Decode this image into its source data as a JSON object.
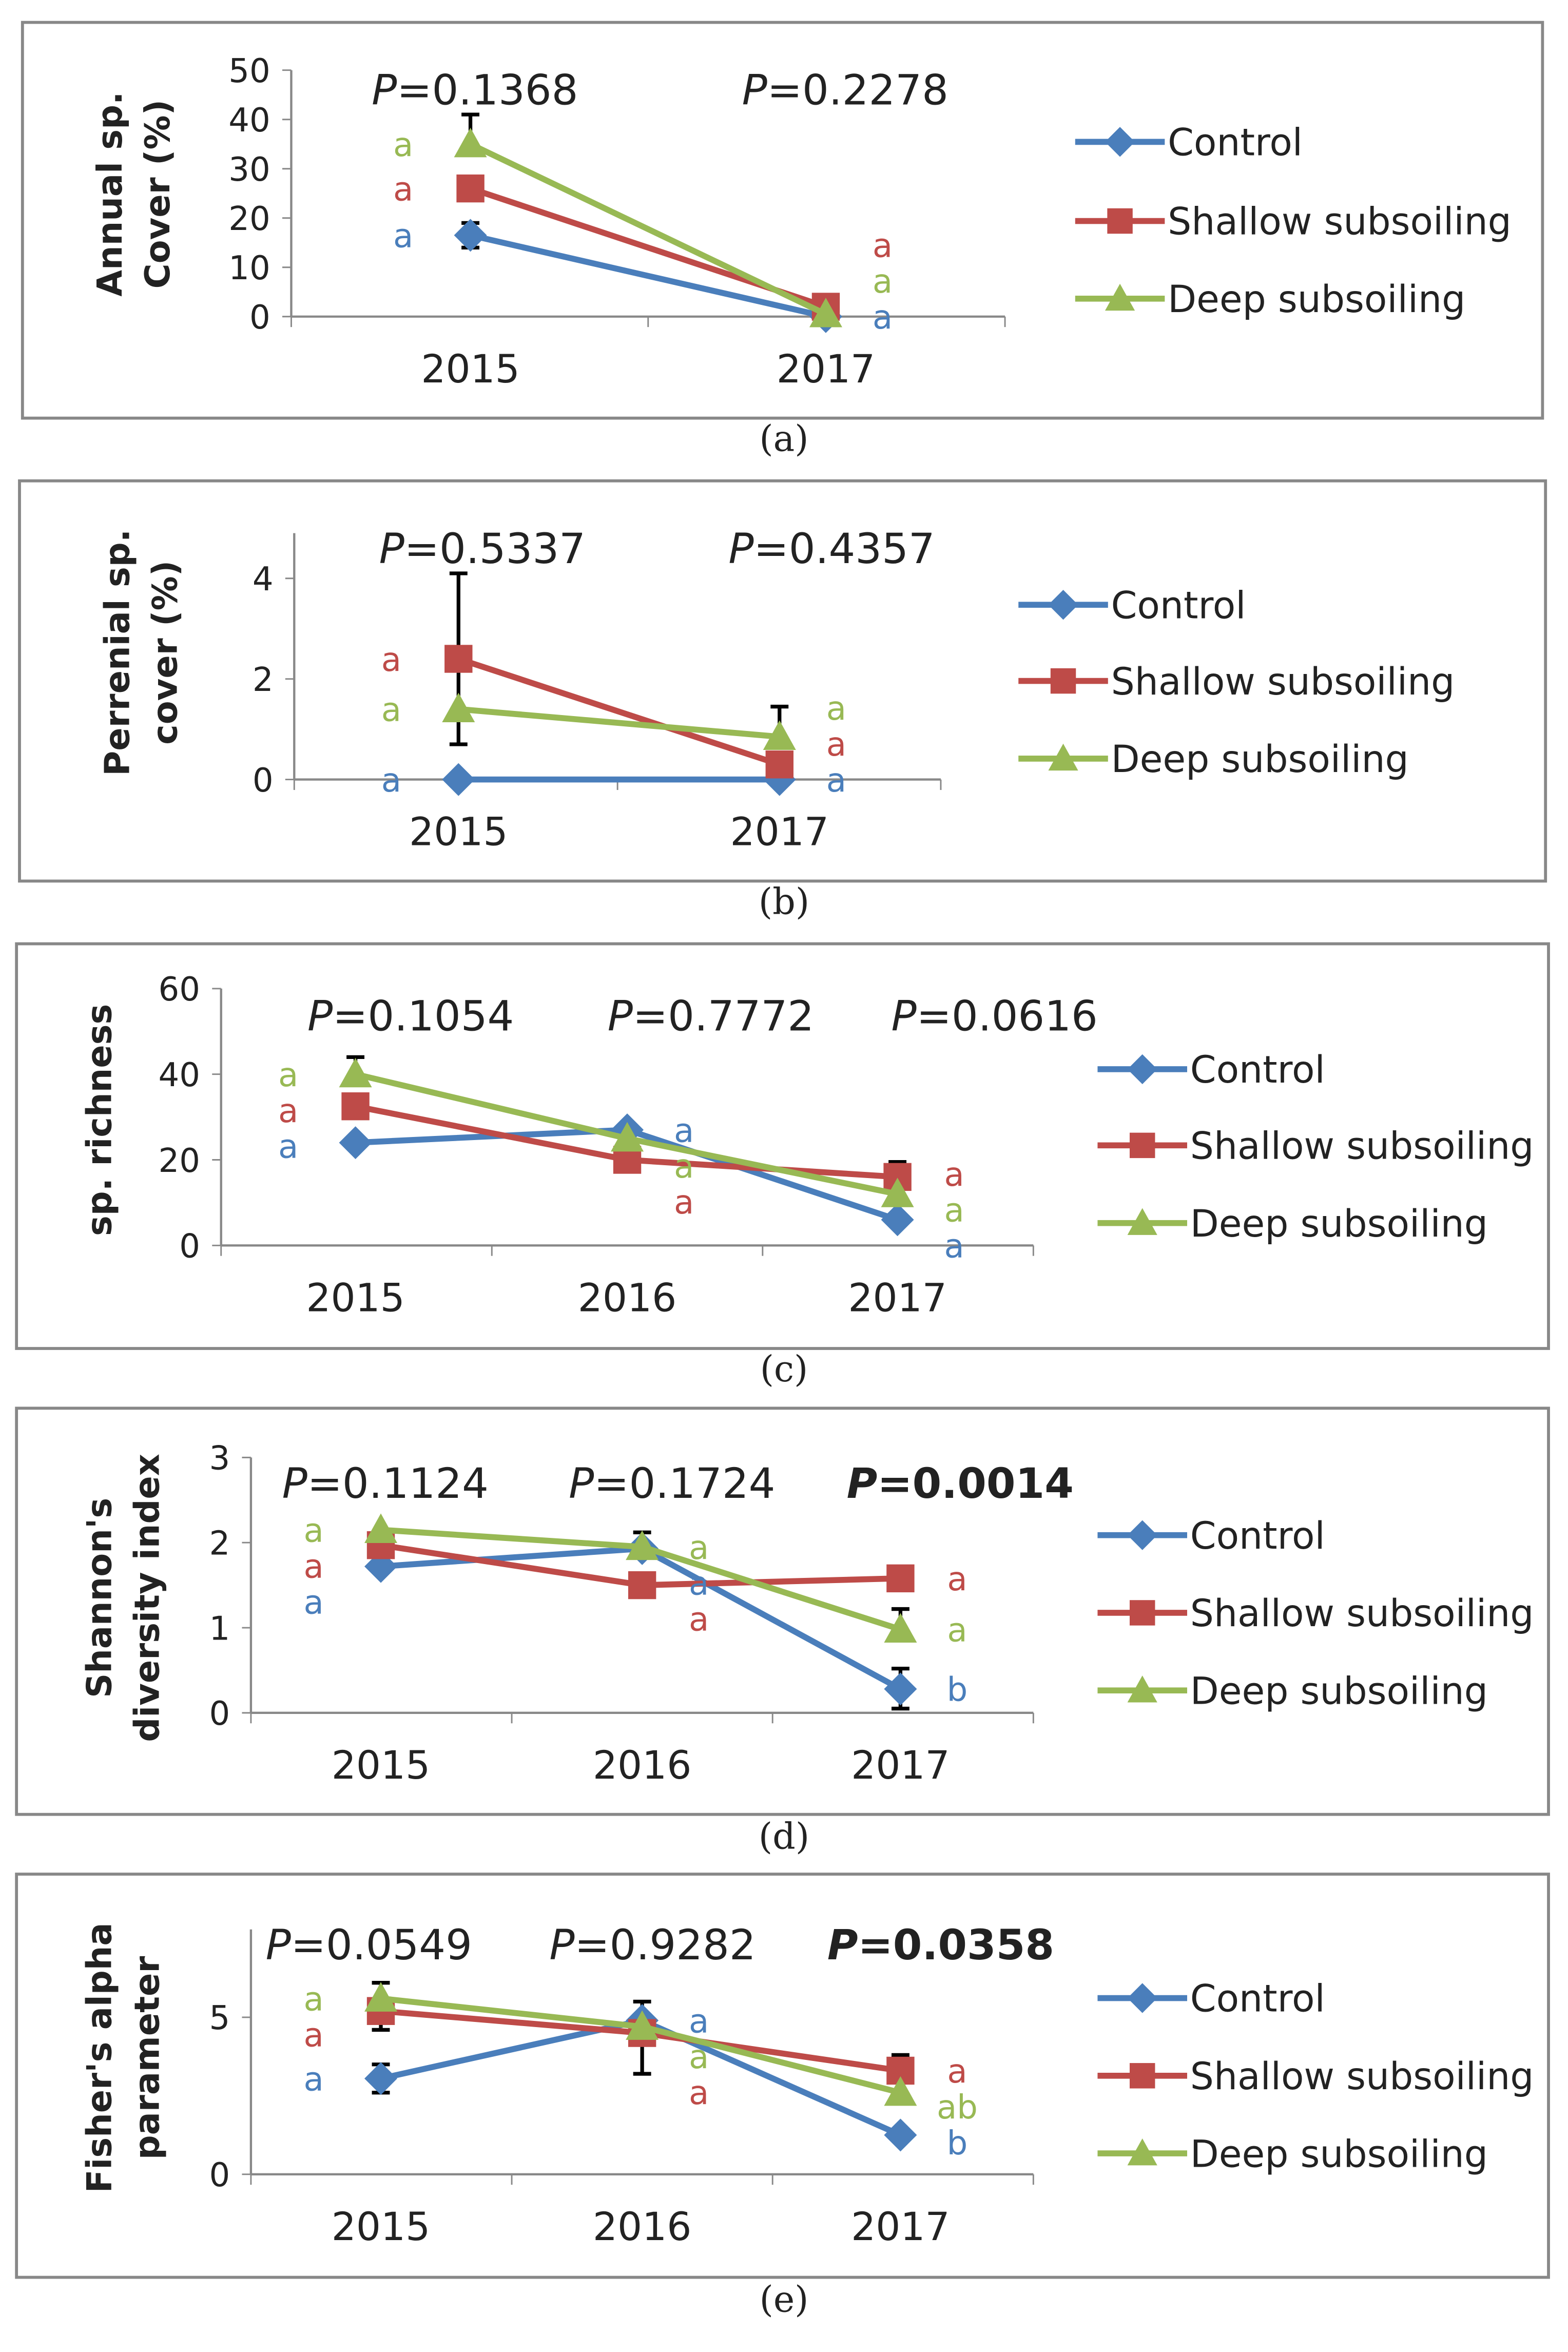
{
  "series_styles": {
    "Control": {
      "color": "#4a7ebb",
      "marker": "diamond"
    },
    "Shallow subsoiling": {
      "color": "#be4b48",
      "marker": "square"
    },
    "Deep subsoiling": {
      "color": "#98b954",
      "marker": "triangle"
    }
  },
  "chart_data": [
    {
      "type": "line",
      "caption": "(a)",
      "ylabel": [
        "Annual sp.",
        "Cover (%)"
      ],
      "ylim": [
        0,
        50
      ],
      "yticks": [
        "0",
        "10",
        "20",
        "30",
        "40",
        "50"
      ],
      "categories": [
        "2015",
        "2017"
      ],
      "pvalues": [
        {
          "p": "P",
          "v": "=0.1368",
          "bold": false
        },
        {
          "p": "P",
          "v": "=0.2278",
          "bold": false
        }
      ],
      "legend": [
        "Control",
        "Shallow subsoiling",
        "Deep subsoiling"
      ],
      "series": [
        {
          "name": "Control",
          "values": [
            16.5,
            0
          ],
          "errors": [
            [
              14,
              19
            ],
            null
          ],
          "letters": [
            "a",
            "a"
          ]
        },
        {
          "name": "Shallow subsoiling",
          "values": [
            26,
            2
          ],
          "errors": [
            null,
            null
          ],
          "letters": [
            "a",
            "a"
          ]
        },
        {
          "name": "Deep subsoiling",
          "values": [
            35,
            0.5
          ],
          "errors": [
            [
              null,
              41
            ],
            null
          ],
          "letters": [
            "a",
            "a"
          ]
        }
      ]
    },
    {
      "type": "line",
      "caption": "(b)",
      "ylabel": [
        "Perrenial sp.",
        "cover (%)"
      ],
      "ylim": [
        0,
        4.9
      ],
      "yticks": [
        "0",
        "2",
        "4"
      ],
      "ytickvals": [
        0,
        2,
        4
      ],
      "categories": [
        "2015",
        "2017"
      ],
      "pvalues": [
        {
          "p": "P",
          "v": "=0.5337",
          "bold": false
        },
        {
          "p": "P",
          "v": "=0.4357",
          "bold": false
        }
      ],
      "legend": [
        "Control",
        "Shallow subsoiling",
        "Deep subsoiling"
      ],
      "series": [
        {
          "name": "Control",
          "values": [
            0,
            0
          ],
          "errors": [
            null,
            null
          ],
          "letters": [
            "a",
            "a"
          ]
        },
        {
          "name": "Shallow subsoiling",
          "values": [
            2.4,
            0.3
          ],
          "errors": [
            [
              0.7,
              4.1
            ],
            null
          ],
          "letters": [
            "a",
            "a"
          ]
        },
        {
          "name": "Deep subsoiling",
          "values": [
            1.4,
            0.85
          ],
          "errors": [
            null,
            [
              null,
              1.45
            ]
          ],
          "letters": [
            "a",
            "a"
          ]
        }
      ]
    },
    {
      "type": "line",
      "caption": "(c)",
      "ylabel": [
        "sp. richness"
      ],
      "ylim": [
        0,
        60
      ],
      "yticks": [
        "0",
        "20",
        "40",
        "60"
      ],
      "ytickvals": [
        0,
        20,
        40,
        60
      ],
      "categories": [
        "2015",
        "2016",
        "2017"
      ],
      "pvalues": [
        {
          "p": "P",
          "v": "=0.1054",
          "bold": false
        },
        {
          "p": "P",
          "v": "=0.7772",
          "bold": false
        },
        {
          "p": "P",
          "v": "=0.0616",
          "bold": false
        }
      ],
      "legend": [
        "Control",
        "Shallow subsoiling",
        "Deep subsoiling"
      ],
      "series": [
        {
          "name": "Control",
          "values": [
            24,
            27,
            6
          ],
          "errors": [
            null,
            null,
            null
          ],
          "letters": [
            "a",
            "a",
            "a"
          ]
        },
        {
          "name": "Shallow subsoiling",
          "values": [
            32.5,
            20,
            16
          ],
          "errors": [
            null,
            null,
            [
              null,
              19.5
            ]
          ],
          "letters": [
            "a",
            "a",
            "a"
          ]
        },
        {
          "name": "Deep subsoiling",
          "values": [
            40,
            25,
            12
          ],
          "errors": [
            [
              null,
              44
            ],
            null,
            null
          ],
          "letters": [
            "a",
            "a",
            "a"
          ]
        }
      ]
    },
    {
      "type": "line",
      "caption": "(d)",
      "ylabel": [
        "Shannon's",
        "diversity index"
      ],
      "ylim": [
        0,
        3
      ],
      "yticks": [
        "0",
        "1",
        "2",
        "3"
      ],
      "ytickvals": [
        0,
        1,
        2,
        3
      ],
      "categories": [
        "2015",
        "2016",
        "2017"
      ],
      "pvalues": [
        {
          "p": "P",
          "v": "=0.1124",
          "bold": false
        },
        {
          "p": "P",
          "v": "=0.1724",
          "bold": false
        },
        {
          "p": "P",
          "v": "=0.0014",
          "bold": true
        }
      ],
      "legend": [
        "Control",
        "Shallow subsoiling",
        "Deep subsoiling"
      ],
      "series": [
        {
          "name": "Control",
          "values": [
            1.72,
            1.93,
            0.28
          ],
          "errors": [
            null,
            [
              null,
              2.12
            ],
            [
              0.05,
              0.52
            ]
          ],
          "letters": [
            "a",
            "a",
            "b"
          ]
        },
        {
          "name": "Shallow subsoiling",
          "values": [
            1.97,
            1.5,
            1.58
          ],
          "errors": [
            null,
            null,
            null
          ],
          "letters": [
            "a",
            "a",
            "a"
          ]
        },
        {
          "name": "Deep subsoiling",
          "values": [
            2.15,
            1.95,
            0.98
          ],
          "errors": [
            null,
            null,
            [
              null,
              1.22
            ]
          ],
          "letters": [
            "a",
            "a",
            "a"
          ]
        }
      ]
    },
    {
      "type": "line",
      "caption": "(e)",
      "ylabel": [
        "Fisher's alpha",
        "parameter"
      ],
      "ylim": [
        0,
        7.8
      ],
      "yticks": [
        "0",
        "5"
      ],
      "ytickvals": [
        0,
        5
      ],
      "categories": [
        "2015",
        "2016",
        "2017"
      ],
      "pvalues": [
        {
          "p": "P",
          "v": "=0.0549",
          "bold": false
        },
        {
          "p": "P",
          "v": "=0.9282",
          "bold": false
        },
        {
          "p": "P",
          "v": "=0.0358",
          "bold": true
        }
      ],
      "legend": [
        "Control",
        "Shallow subsoiling",
        "Deep subsoiling"
      ],
      "series": [
        {
          "name": "Control",
          "values": [
            3.05,
            4.9,
            1.25
          ],
          "errors": [
            [
              2.6,
              3.5
            ],
            [
              null,
              5.5
            ],
            null
          ],
          "letters": [
            "a",
            "a",
            "b"
          ]
        },
        {
          "name": "Shallow subsoiling",
          "values": [
            5.2,
            4.5,
            3.3
          ],
          "errors": [
            [
              4.6,
              null
            ],
            [
              3.2,
              null
            ],
            [
              null,
              3.8
            ]
          ],
          "letters": [
            "a",
            "a",
            "a"
          ]
        },
        {
          "name": "Deep subsoiling",
          "values": [
            5.6,
            4.7,
            2.6
          ],
          "errors": [
            [
              null,
              6.1
            ],
            null,
            null
          ],
          "letters": [
            "a",
            "a",
            "ab"
          ]
        }
      ]
    }
  ]
}
